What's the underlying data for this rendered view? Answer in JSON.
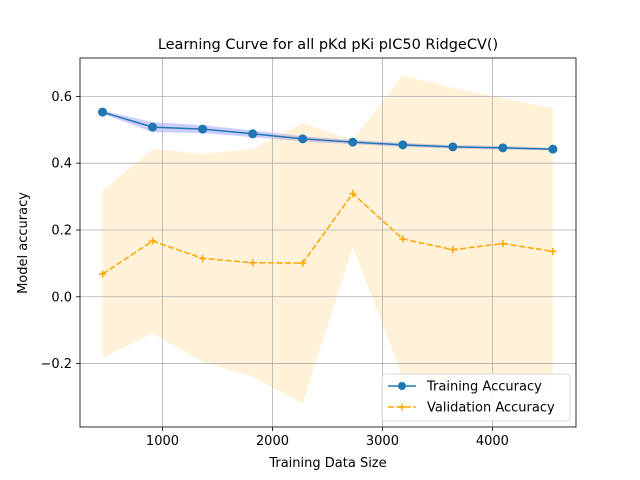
{
  "chart_data": {
    "type": "line",
    "title": "Learning Curve for all pKd pKi pIC50 RidgeCV()",
    "xlabel": "Training Data Size",
    "ylabel": "Model accuracy",
    "xlim": [
      250,
      4760
    ],
    "ylim": [
      -0.39,
      0.715
    ],
    "x_ticks": [
      1000,
      2000,
      3000,
      4000
    ],
    "x_tick_labels": [
      "1000",
      "2000",
      "3000",
      "4000"
    ],
    "y_ticks": [
      -0.2,
      0.0,
      0.2,
      0.4,
      0.6
    ],
    "y_tick_labels": [
      "−0.2",
      "0.0",
      "0.2",
      "0.4",
      "0.6"
    ],
    "grid": true,
    "legend_position": "bottom-right",
    "x": [
      455,
      910,
      1365,
      1820,
      2275,
      2730,
      3185,
      3640,
      4095,
      4550
    ],
    "series": [
      {
        "name": "Training Accuracy",
        "color": "#1f77b4",
        "band_color": "#4b4bff",
        "marker": "circle",
        "linestyle": "solid",
        "values": [
          0.553,
          0.508,
          0.502,
          0.488,
          0.473,
          0.463,
          0.455,
          0.449,
          0.446,
          0.442
        ],
        "lower": [
          0.548,
          0.493,
          0.49,
          0.478,
          0.465,
          0.457,
          0.449,
          0.444,
          0.441,
          0.438
        ],
        "upper": [
          0.557,
          0.523,
          0.514,
          0.498,
          0.481,
          0.469,
          0.461,
          0.454,
          0.451,
          0.446
        ]
      },
      {
        "name": "Validation Accuracy",
        "color": "#ffa500",
        "band_color": "#ffa500",
        "marker": "plus",
        "linestyle": "dashed",
        "values": [
          0.068,
          0.167,
          0.115,
          0.102,
          0.101,
          0.309,
          0.173,
          0.141,
          0.159,
          0.136
        ],
        "lower": [
          -0.183,
          -0.11,
          -0.195,
          -0.24,
          -0.32,
          0.148,
          -0.24,
          -0.255,
          -0.265,
          -0.29
        ],
        "upper": [
          0.318,
          0.443,
          0.428,
          0.443,
          0.52,
          0.47,
          0.664,
          0.625,
          0.595,
          0.565
        ]
      }
    ]
  }
}
